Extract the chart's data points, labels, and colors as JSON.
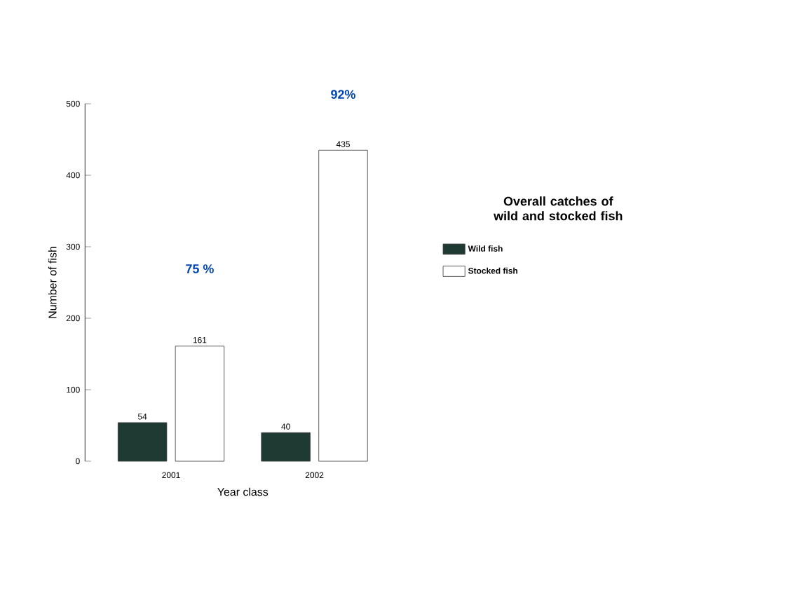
{
  "chart_data": {
    "type": "bar",
    "xlabel": "Year class",
    "ylabel": "Number of fish",
    "legend_title": "Overall catches of wild and stocked fish",
    "categories": [
      "2001",
      "2002"
    ],
    "series": [
      {
        "name": "Wild fish",
        "color": "#1f3a33",
        "values": [
          54,
          40
        ]
      },
      {
        "name": "Stocked fish",
        "color": "#ffffff",
        "values": [
          161,
          435
        ]
      }
    ],
    "ylim": [
      0,
      500
    ],
    "yticks": [
      0,
      100,
      200,
      300,
      400,
      500
    ],
    "data_labels": true,
    "legend": "right",
    "grid": false,
    "annotations": [
      "75 %",
      "92%"
    ]
  }
}
